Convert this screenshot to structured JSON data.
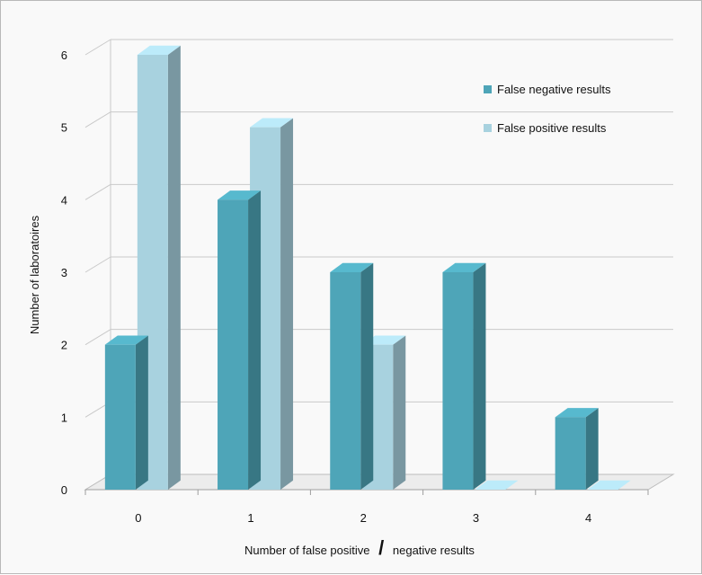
{
  "chart_data": {
    "type": "bar",
    "title": "",
    "categories": [
      "0",
      "1",
      "2",
      "3",
      "4"
    ],
    "series": [
      {
        "name": "False negative results",
        "values": [
          2,
          4,
          3,
          3,
          1
        ]
      },
      {
        "name": "False positive results",
        "values": [
          6,
          5,
          2,
          0,
          0
        ]
      }
    ],
    "xlabel": "Number of false positive / negative results",
    "xlabel_parts": [
      "Number of false positive",
      "/",
      "negative results"
    ],
    "ylabel": "Number of laboratoires",
    "ylim": [
      0,
      6
    ],
    "yticks": [
      0,
      1,
      2,
      3,
      4,
      5,
      6
    ],
    "grid": true,
    "legend_position": "top-right",
    "colors": {
      "False negative results": "#4ea5b8",
      "False positive results": "#a8d2df"
    },
    "style": "3d-clustered-bar"
  }
}
